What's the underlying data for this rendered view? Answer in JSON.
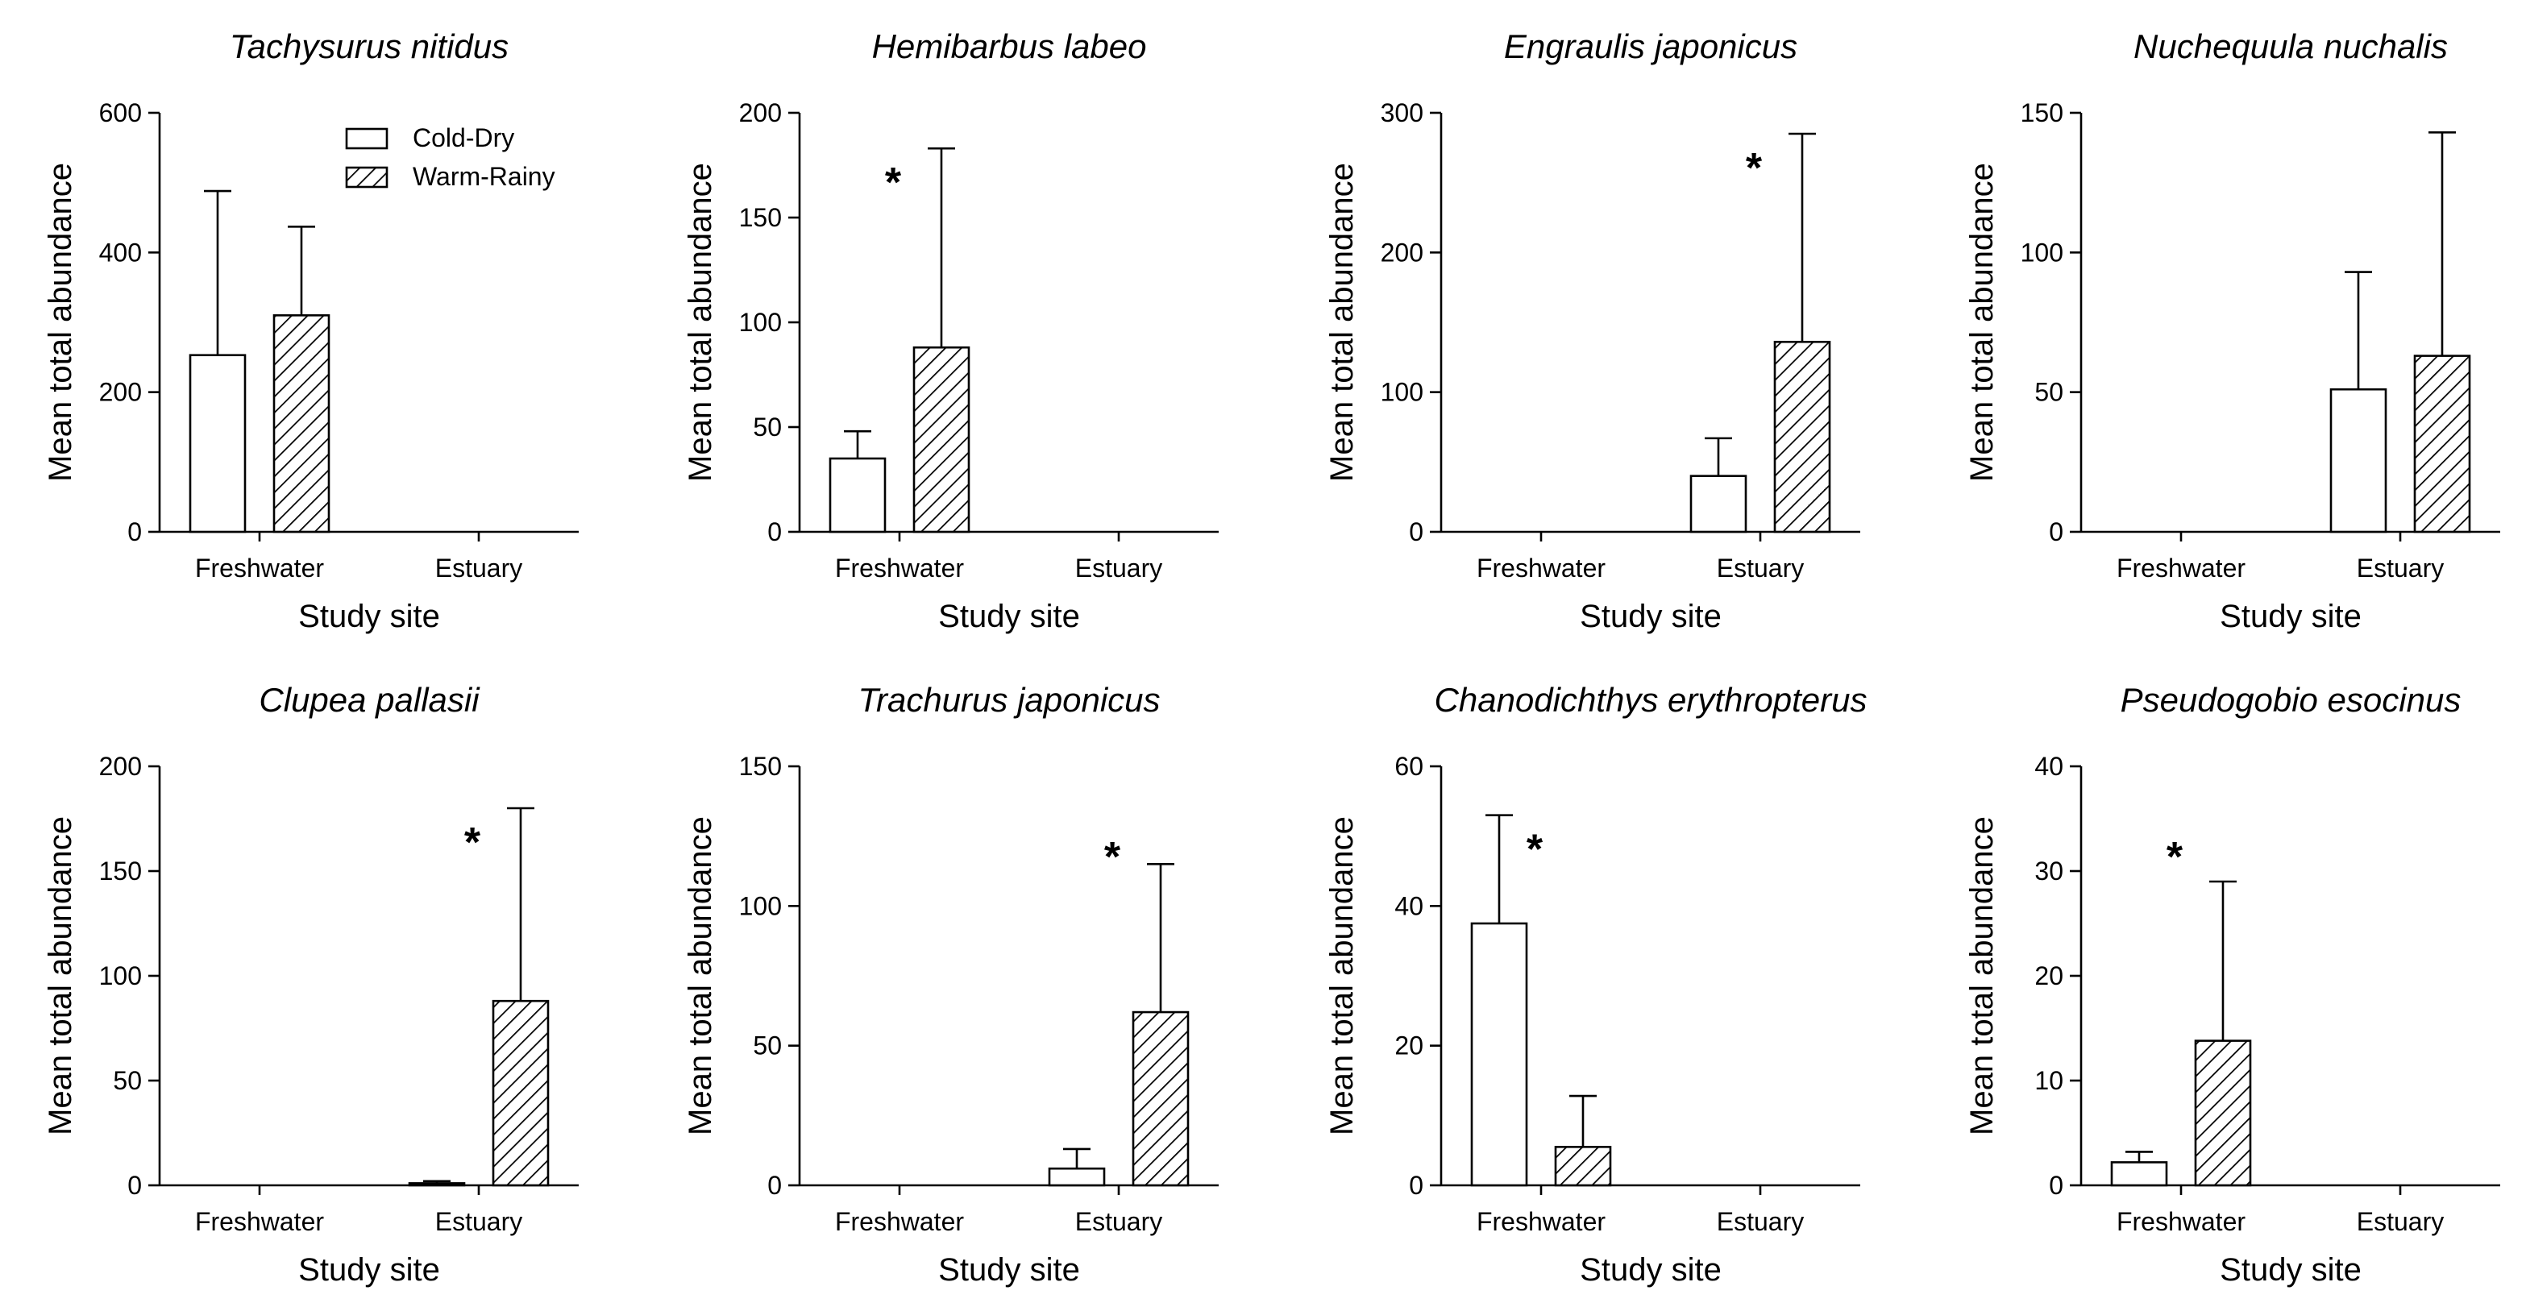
{
  "legend": {
    "entries": [
      {
        "name": "Cold-Dry",
        "style": "open"
      },
      {
        "name": "Warm-Rainy",
        "style": "hatched"
      }
    ]
  },
  "chart_data": [
    {
      "type": "bar",
      "title": "Tachysurus nitidus",
      "xlabel": "Study site",
      "ylabel": "Mean total abundance",
      "categories": [
        "Freshwater",
        "Estuary"
      ],
      "ylim": [
        0,
        600
      ],
      "yticks": [
        0,
        200,
        400,
        600
      ],
      "series": [
        {
          "name": "Cold-Dry",
          "values": [
            253,
            0
          ],
          "errors": [
            235,
            0
          ]
        },
        {
          "name": "Warm-Rainy",
          "values": [
            310,
            0
          ],
          "errors": [
            127,
            0
          ]
        }
      ],
      "significance": []
    },
    {
      "type": "bar",
      "title": "Hemibarbus labeo",
      "xlabel": "Study site",
      "ylabel": "Mean total abundance",
      "categories": [
        "Freshwater",
        "Estuary"
      ],
      "ylim": [
        0,
        200
      ],
      "yticks": [
        0,
        50,
        100,
        150,
        200
      ],
      "series": [
        {
          "name": "Cold-Dry",
          "values": [
            35,
            0
          ],
          "errors": [
            13,
            0
          ]
        },
        {
          "name": "Warm-Rainy",
          "values": [
            88,
            0
          ],
          "errors": [
            95,
            0
          ]
        }
      ],
      "significance": [
        {
          "category": "Freshwater",
          "label": "*"
        }
      ]
    },
    {
      "type": "bar",
      "title": "Engraulis japonicus",
      "xlabel": "Study site",
      "ylabel": "Mean total abundance",
      "categories": [
        "Freshwater",
        "Estuary"
      ],
      "ylim": [
        0,
        300
      ],
      "yticks": [
        0,
        100,
        200,
        300
      ],
      "series": [
        {
          "name": "Cold-Dry",
          "values": [
            0,
            40
          ],
          "errors": [
            0,
            27
          ]
        },
        {
          "name": "Warm-Rainy",
          "values": [
            0,
            136
          ],
          "errors": [
            0,
            149
          ]
        }
      ],
      "significance": [
        {
          "category": "Estuary",
          "label": "*"
        }
      ]
    },
    {
      "type": "bar",
      "title": "Nuchequula nuchalis",
      "xlabel": "Study site",
      "ylabel": "Mean total abundance",
      "categories": [
        "Freshwater",
        "Estuary"
      ],
      "ylim": [
        0,
        150
      ],
      "yticks": [
        0,
        50,
        100,
        150
      ],
      "series": [
        {
          "name": "Cold-Dry",
          "values": [
            0,
            51
          ],
          "errors": [
            0,
            42
          ]
        },
        {
          "name": "Warm-Rainy",
          "values": [
            0,
            63
          ],
          "errors": [
            0,
            80
          ]
        }
      ],
      "significance": []
    },
    {
      "type": "bar",
      "title": "Clupea pallasii",
      "xlabel": "Study site",
      "ylabel": "Mean total abundance",
      "categories": [
        "Freshwater",
        "Estuary"
      ],
      "ylim": [
        0,
        200
      ],
      "yticks": [
        0,
        50,
        100,
        150,
        200
      ],
      "series": [
        {
          "name": "Cold-Dry",
          "values": [
            0,
            1
          ],
          "errors": [
            0,
            1
          ]
        },
        {
          "name": "Warm-Rainy",
          "values": [
            0,
            88
          ],
          "errors": [
            0,
            92
          ]
        }
      ],
      "significance": [
        {
          "category": "Estuary",
          "label": "*"
        }
      ]
    },
    {
      "type": "bar",
      "title": "Trachurus japonicus",
      "xlabel": "Study site",
      "ylabel": "Mean total abundance",
      "categories": [
        "Freshwater",
        "Estuary"
      ],
      "ylim": [
        0,
        150
      ],
      "yticks": [
        0,
        50,
        100,
        150
      ],
      "series": [
        {
          "name": "Cold-Dry",
          "values": [
            0,
            6
          ],
          "errors": [
            0,
            7
          ]
        },
        {
          "name": "Warm-Rainy",
          "values": [
            0,
            62
          ],
          "errors": [
            0,
            53
          ]
        }
      ],
      "significance": [
        {
          "category": "Estuary",
          "label": "*"
        }
      ]
    },
    {
      "type": "bar",
      "title": "Chanodichthys erythropterus",
      "xlabel": "Study site",
      "ylabel": "Mean total abundance",
      "categories": [
        "Freshwater",
        "Estuary"
      ],
      "ylim": [
        0,
        60
      ],
      "yticks": [
        0,
        20,
        40,
        60
      ],
      "series": [
        {
          "name": "Cold-Dry",
          "values": [
            37.5,
            0
          ],
          "errors": [
            15.5,
            0
          ]
        },
        {
          "name": "Warm-Rainy",
          "values": [
            5.5,
            0
          ],
          "errors": [
            7.3,
            0
          ]
        }
      ],
      "significance": [
        {
          "category": "Freshwater",
          "label": "*"
        }
      ]
    },
    {
      "type": "bar",
      "title": "Pseudogobio esocinus",
      "xlabel": "Study site",
      "ylabel": "Mean total abundance",
      "categories": [
        "Freshwater",
        "Estuary"
      ],
      "ylim": [
        0,
        40
      ],
      "yticks": [
        0,
        10,
        20,
        30,
        40
      ],
      "series": [
        {
          "name": "Cold-Dry",
          "values": [
            2.2,
            0
          ],
          "errors": [
            1.0,
            0
          ]
        },
        {
          "name": "Warm-Rainy",
          "values": [
            13.8,
            0
          ],
          "errors": [
            15.2,
            0
          ]
        }
      ],
      "significance": [
        {
          "category": "Freshwater",
          "label": "*"
        }
      ]
    }
  ]
}
